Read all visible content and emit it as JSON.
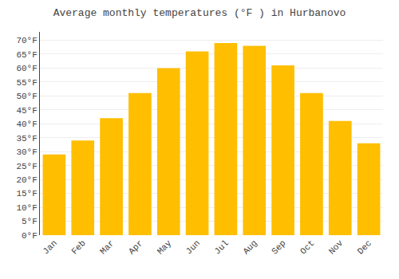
{
  "chart_data": {
    "type": "bar",
    "title": "Average monthly temperatures (°F ) in Hurbanovo",
    "categories": [
      "Jan",
      "Feb",
      "Mar",
      "Apr",
      "May",
      "Jun",
      "Jul",
      "Aug",
      "Sep",
      "Oct",
      "Nov",
      "Dec"
    ],
    "values": [
      29,
      34,
      42,
      51,
      60,
      66,
      69,
      68,
      61,
      51,
      41,
      33
    ],
    "color": "#FFBE00",
    "ylim": [
      0,
      73
    ],
    "yticks": [
      {
        "value": 0,
        "label": "0°F"
      },
      {
        "value": 5,
        "label": "5°F"
      },
      {
        "value": 10,
        "label": "10°F"
      },
      {
        "value": 15,
        "label": "15°F"
      },
      {
        "value": 20,
        "label": "20°F"
      },
      {
        "value": 25,
        "label": "25°F"
      },
      {
        "value": 30,
        "label": "30°F"
      },
      {
        "value": 35,
        "label": "35°F"
      },
      {
        "value": 40,
        "label": "40°F"
      },
      {
        "value": 45,
        "label": "45°F"
      },
      {
        "value": 50,
        "label": "50°F"
      },
      {
        "value": 55,
        "label": "55°F"
      },
      {
        "value": 60,
        "label": "60°F"
      },
      {
        "value": 65,
        "label": "65°F"
      },
      {
        "value": 70,
        "label": "70°F"
      }
    ],
    "grid": true
  }
}
